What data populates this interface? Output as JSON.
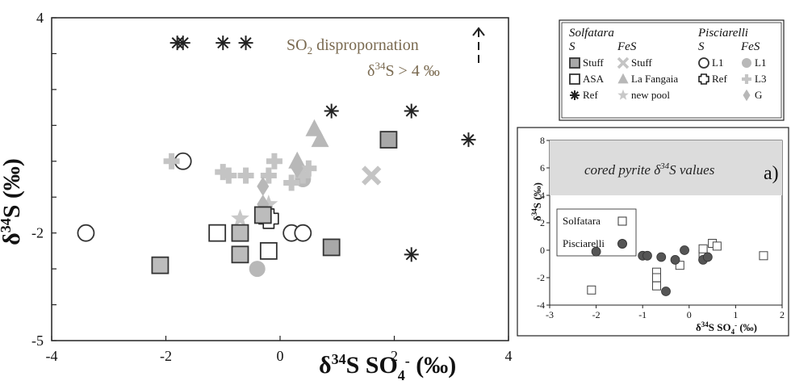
{
  "chart_data": [
    {
      "type": "scatter",
      "xlabel": "δ34S SO4- (‰)",
      "ylabel": "δ34S (‰)",
      "xlim": [
        -4,
        4
      ],
      "ylim": [
        -5,
        4
      ],
      "xticks": [
        "-4",
        "-2",
        "0",
        "2",
        "4"
      ],
      "yticks": [
        "4",
        "-2",
        "-5"
      ],
      "annotation": {
        "line1": "SO2 disproporn​ation",
        "line2": "δ34S > 4 ‰"
      },
      "series": [
        {
          "name": "Solfatara S Stuff",
          "marker": "square",
          "fill": "#a8a8a8",
          "points": [
            [
              1.9,
              0.6
            ],
            [
              0.9,
              -2.4
            ]
          ]
        },
        {
          "name": "Solfatara S ASA",
          "marker": "square-open",
          "points": [
            [
              -1.1,
              -2.0
            ],
            [
              -0.2,
              -2.5
            ]
          ]
        },
        {
          "name": "Solfatara S Ref",
          "marker": "asterisk",
          "points": [
            [
              -1.8,
              3.3
            ],
            [
              -1.7,
              3.3
            ],
            [
              -1.0,
              3.3
            ],
            [
              -0.6,
              3.3
            ],
            [
              0.9,
              1.4
            ],
            [
              2.3,
              1.4
            ],
            [
              3.3,
              0.6
            ],
            [
              2.3,
              -2.6
            ]
          ]
        },
        {
          "name": "Solfatara FeS Stuff",
          "marker": "x",
          "points": [
            [
              1.6,
              -0.4
            ]
          ]
        },
        {
          "name": "Solfatara FeS La Fangaia",
          "marker": "triangle",
          "points": [
            [
              0.6,
              0.9
            ],
            [
              0.7,
              0.6
            ],
            [
              0.3,
              0.0
            ]
          ]
        },
        {
          "name": "Solfatara FeS new pool",
          "marker": "star",
          "points": [
            [
              -0.2,
              -1.2
            ],
            [
              -0.7,
              -1.6
            ]
          ]
        },
        {
          "name": "Pisciarelli S L1",
          "marker": "circle-open",
          "points": [
            [
              -3.4,
              -2.0
            ],
            [
              -1.7,
              0.0
            ],
            [
              0.2,
              -2.0
            ],
            [
              0.4,
              -2.0
            ]
          ]
        },
        {
          "name": "Pisciarelli S Ref",
          "marker": "cross-open",
          "points": [
            [
              -0.2,
              -1.6
            ]
          ]
        },
        {
          "name": "Pisciarelli FeS L1",
          "marker": "circle",
          "points": [
            [
              0.4,
              -0.5
            ],
            [
              -0.4,
              -3.0
            ]
          ]
        },
        {
          "name": "Pisciarelli FeS L3",
          "marker": "plus",
          "points": [
            [
              -1.9,
              0.0
            ],
            [
              -1.0,
              -0.3
            ],
            [
              -0.9,
              -0.4
            ],
            [
              -0.6,
              -0.4
            ],
            [
              -0.2,
              -0.4
            ],
            [
              -0.1,
              0.0
            ],
            [
              0.2,
              -0.6
            ],
            [
              0.4,
              -0.4
            ],
            [
              0.5,
              -0.2
            ]
          ]
        },
        {
          "name": "Pisciarelli FeS G",
          "marker": "diamond",
          "points": [
            [
              -0.3,
              -0.7
            ],
            [
              -0.3,
              -1.2
            ],
            [
              0.3,
              -0.2
            ]
          ]
        },
        {
          "name": "grey unlabeled",
          "marker": "square",
          "fill": "#bcbcbc",
          "points": [
            [
              -2.1,
              -2.9
            ],
            [
              -0.7,
              -2.0
            ],
            [
              -0.7,
              -2.6
            ],
            [
              -0.3,
              -1.5
            ]
          ]
        }
      ],
      "legend": {
        "groups": [
          {
            "title": "Solfatara",
            "columns": [
              {
                "header": "S",
                "items": [
                  "Stuff",
                  "ASA",
                  "Ref"
                ]
              },
              {
                "header": "FeS",
                "items": [
                  "Stuff",
                  "La Fangaia",
                  "new pool"
                ]
              }
            ]
          },
          {
            "title": "Pisciarelli",
            "columns": [
              {
                "header": "S",
                "items": [
                  "L1",
                  "Ref"
                ]
              },
              {
                "header": "FeS",
                "items": [
                  "L1",
                  "L3",
                  "G"
                ]
              }
            ]
          }
        ]
      }
    },
    {
      "type": "scatter",
      "panel_label": "a)",
      "xlabel": "δ34S SO4- (‰)",
      "ylabel": "δ34S (‰)",
      "xlim": [
        -3,
        2
      ],
      "ylim": [
        -4,
        8
      ],
      "xticks": [
        "-3",
        "-2",
        "-1",
        "0",
        "1",
        "2"
      ],
      "yticks": [
        "8",
        "6",
        "4",
        "2",
        "0",
        "-2",
        "-4"
      ],
      "band": {
        "label": "cored pyrite δ34S values",
        "y_range": [
          4,
          8
        ]
      },
      "series": [
        {
          "name": "Solfatara",
          "marker": "square-open",
          "points": [
            [
              -2.1,
              -2.9
            ],
            [
              -0.7,
              -1.6
            ],
            [
              -0.7,
              -2.0
            ],
            [
              -0.7,
              -2.6
            ],
            [
              -0.2,
              -1.1
            ],
            [
              0.3,
              -0.3
            ],
            [
              0.3,
              0.1
            ],
            [
              0.5,
              0.5
            ],
            [
              0.6,
              0.3
            ],
            [
              1.6,
              -0.4
            ]
          ]
        },
        {
          "name": "Pisciarelli",
          "marker": "circle",
          "points": [
            [
              -2.0,
              -0.1
            ],
            [
              -1.0,
              -0.4
            ],
            [
              -0.9,
              -0.4
            ],
            [
              -0.6,
              -0.5
            ],
            [
              -0.5,
              -3.0
            ],
            [
              -0.3,
              -0.7
            ],
            [
              -0.1,
              0.0
            ],
            [
              0.3,
              -0.7
            ],
            [
              0.4,
              -0.5
            ]
          ]
        }
      ]
    }
  ]
}
